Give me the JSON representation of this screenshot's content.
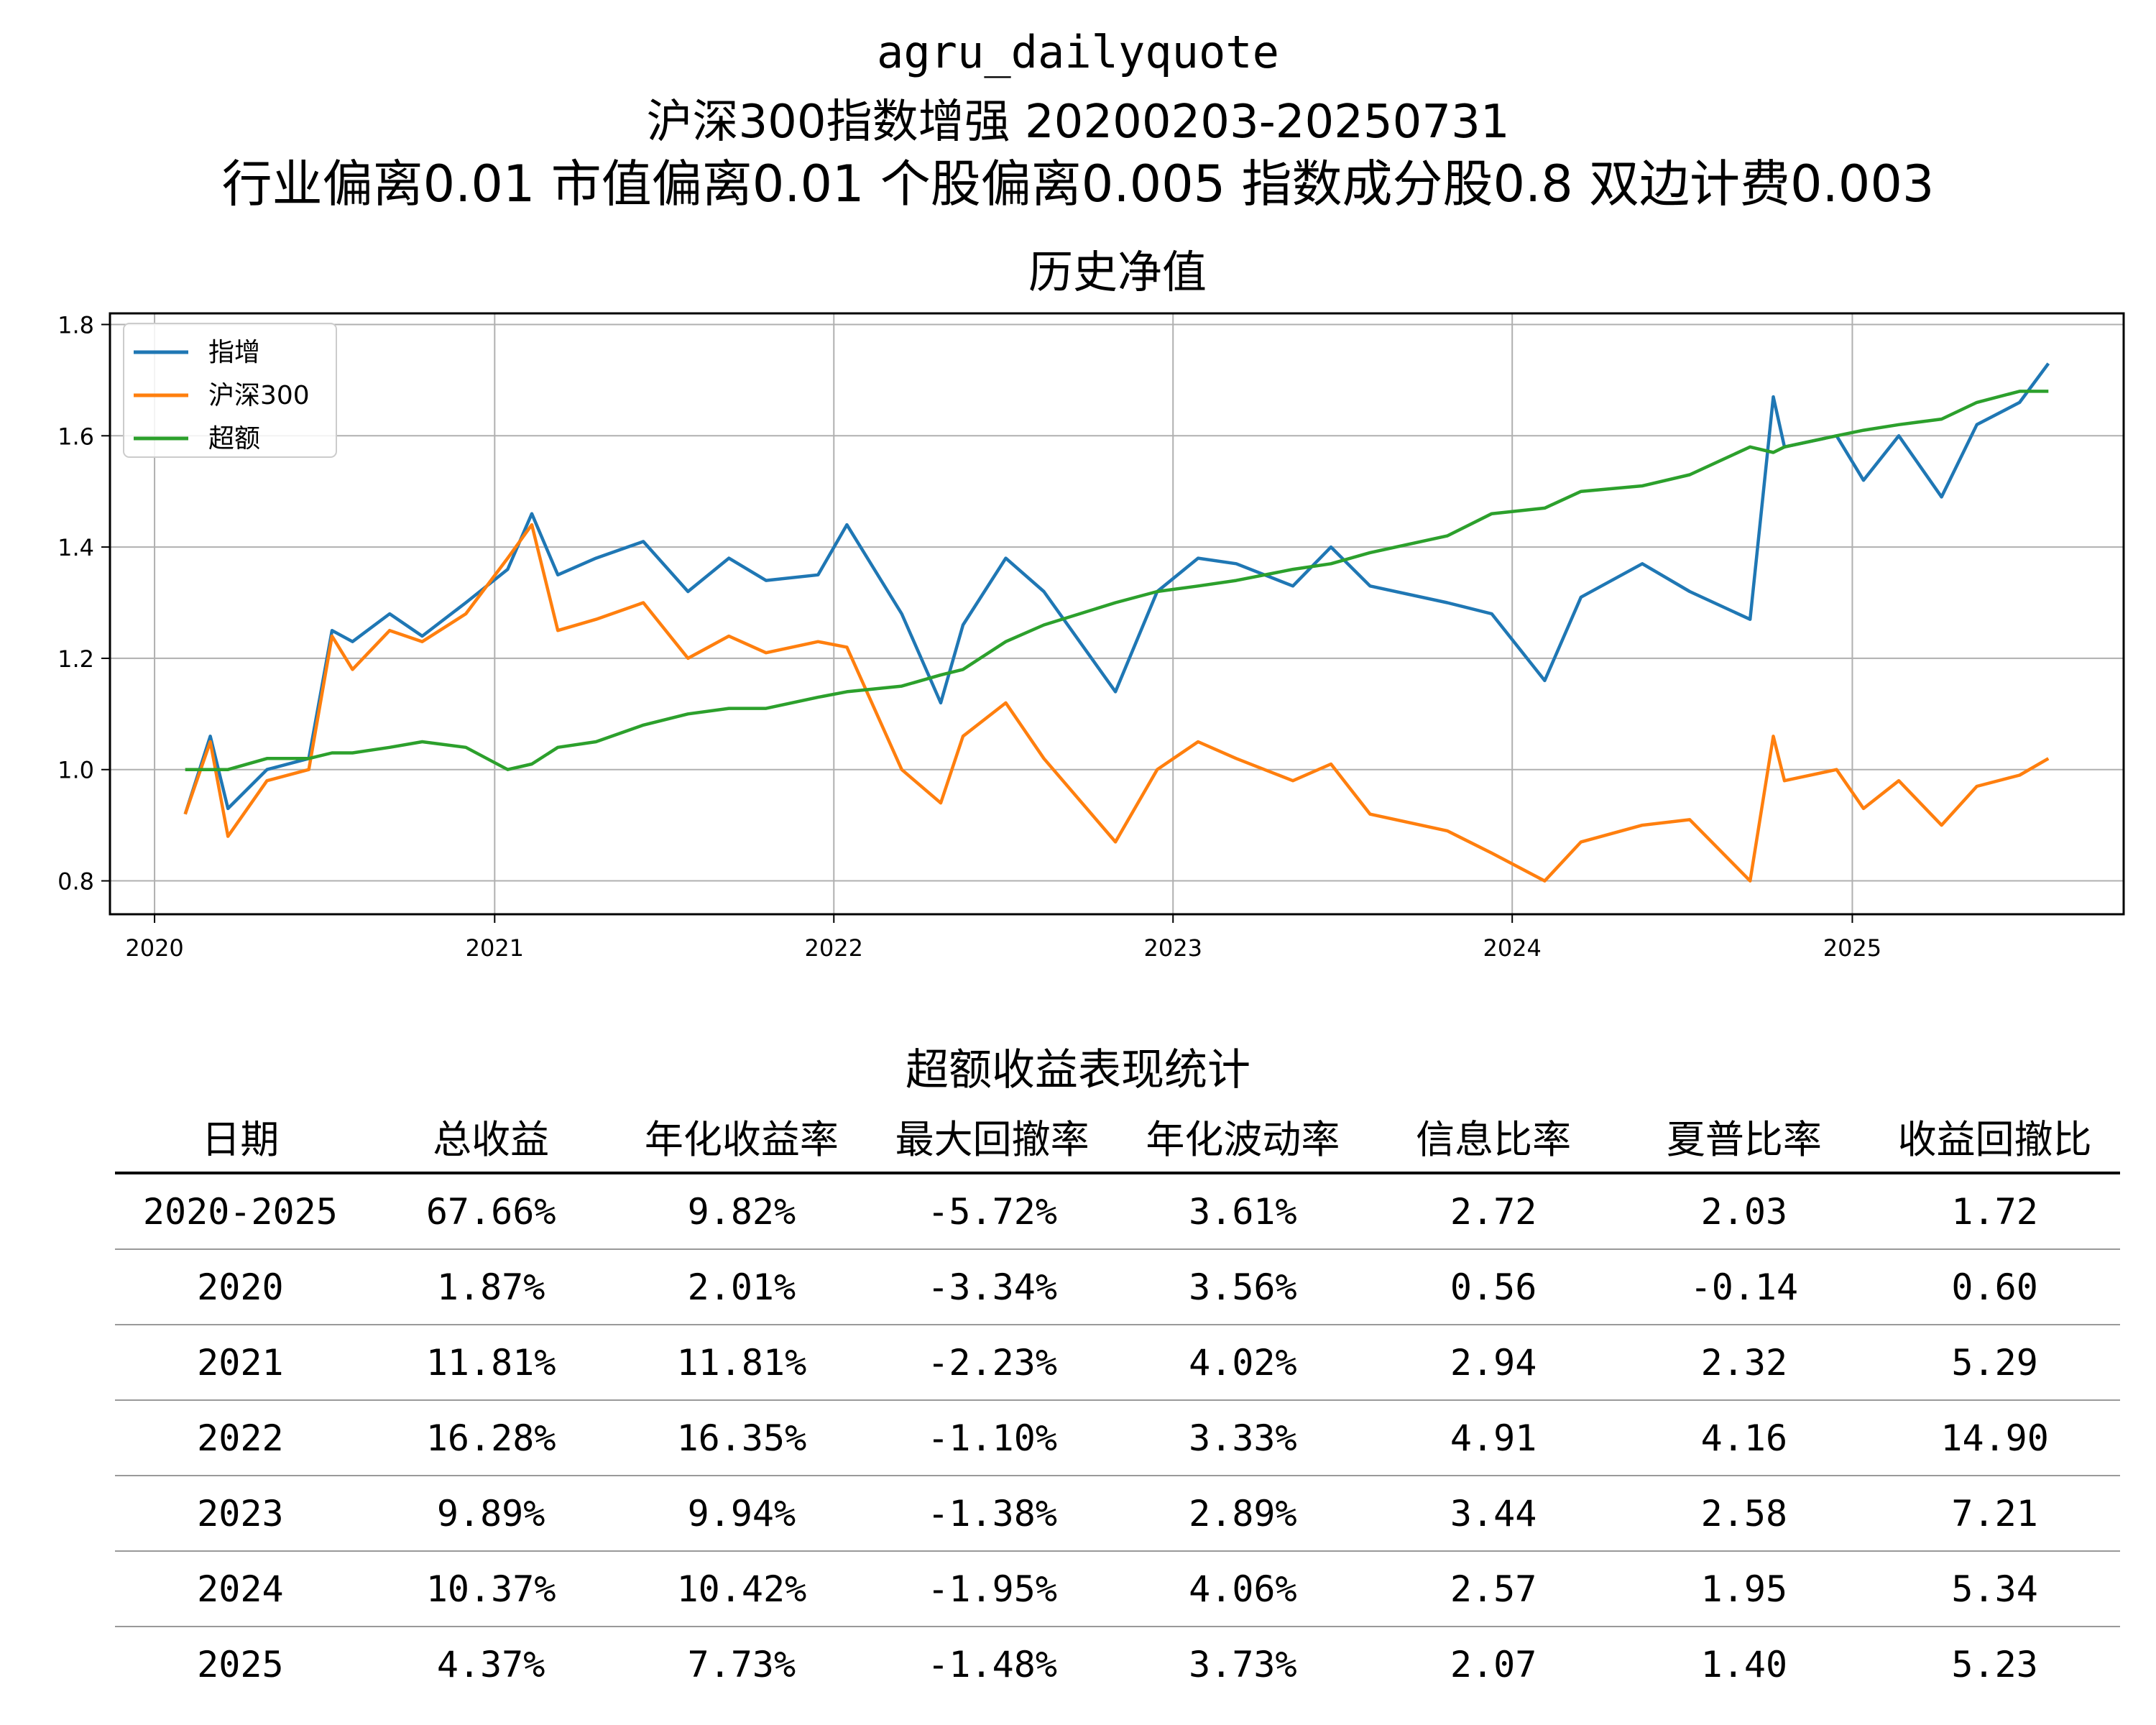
{
  "header": {
    "line1": "agru_dailyquote",
    "line2": "沪深300指数增强  20200203-20250731",
    "line3": "行业偏离0.01  市值偏离0.01  个股偏离0.005  指数成分股0.8  双边计费0.003"
  },
  "chart_data": {
    "type": "line",
    "title": "历史净值",
    "xlabel": "",
    "ylabel": "",
    "xlim": [
      "2019-11-14",
      "2025-10-20"
    ],
    "ylim": [
      0.74,
      1.82
    ],
    "x_ticks": [
      "2020",
      "2021",
      "2022",
      "2023",
      "2024",
      "2025"
    ],
    "y_ticks": [
      "0.8",
      "1.0",
      "1.2",
      "1.4",
      "1.6",
      "1.8"
    ],
    "grid": true,
    "legend_position": "upper-left",
    "x": [
      "2020-02-03",
      "2020-03-01",
      "2020-03-20",
      "2020-05-01",
      "2020-06-15",
      "2020-07-10",
      "2020-08-01",
      "2020-09-10",
      "2020-10-15",
      "2020-12-01",
      "2021-01-15",
      "2021-02-10",
      "2021-03-10",
      "2021-04-20",
      "2021-06-10",
      "2021-07-28",
      "2021-09-10",
      "2021-10-20",
      "2021-12-15",
      "2022-01-15",
      "2022-03-15",
      "2022-04-26",
      "2022-05-20",
      "2022-07-05",
      "2022-08-15",
      "2022-10-31",
      "2022-12-15",
      "2023-01-28",
      "2023-03-10",
      "2023-05-10",
      "2023-06-20",
      "2023-08-01",
      "2023-10-23",
      "2023-12-10",
      "2024-02-05",
      "2024-03-15",
      "2024-05-20",
      "2024-07-10",
      "2024-09-13",
      "2024-10-08",
      "2024-10-20",
      "2024-12-15",
      "2025-01-13",
      "2025-02-20",
      "2025-04-07",
      "2025-05-15",
      "2025-06-30",
      "2025-07-31"
    ],
    "series": [
      {
        "name": "指增",
        "color": "#1f77b4",
        "values": [
          0.92,
          1.06,
          0.93,
          1.0,
          1.02,
          1.25,
          1.23,
          1.28,
          1.24,
          1.3,
          1.36,
          1.46,
          1.35,
          1.38,
          1.41,
          1.32,
          1.38,
          1.34,
          1.35,
          1.44,
          1.28,
          1.12,
          1.26,
          1.38,
          1.32,
          1.14,
          1.32,
          1.38,
          1.37,
          1.33,
          1.4,
          1.33,
          1.3,
          1.28,
          1.16,
          1.31,
          1.37,
          1.32,
          1.27,
          1.67,
          1.58,
          1.6,
          1.52,
          1.6,
          1.49,
          1.62,
          1.66,
          1.73
        ]
      },
      {
        "name": "沪深300",
        "color": "#ff7f0e",
        "values": [
          0.92,
          1.05,
          0.88,
          0.98,
          1.0,
          1.24,
          1.18,
          1.25,
          1.23,
          1.28,
          1.38,
          1.44,
          1.25,
          1.27,
          1.3,
          1.2,
          1.24,
          1.21,
          1.23,
          1.22,
          1.0,
          0.94,
          1.06,
          1.12,
          1.02,
          0.87,
          1.0,
          1.05,
          1.02,
          0.98,
          1.01,
          0.92,
          0.89,
          0.85,
          0.8,
          0.87,
          0.9,
          0.91,
          0.8,
          1.06,
          0.98,
          1.0,
          0.93,
          0.98,
          0.9,
          0.97,
          0.99,
          1.02
        ]
      },
      {
        "name": "超额",
        "color": "#2ca02c",
        "values": [
          1.0,
          1.0,
          1.0,
          1.02,
          1.02,
          1.03,
          1.03,
          1.04,
          1.05,
          1.04,
          1.0,
          1.01,
          1.04,
          1.05,
          1.08,
          1.1,
          1.11,
          1.11,
          1.13,
          1.14,
          1.15,
          1.17,
          1.18,
          1.23,
          1.26,
          1.3,
          1.32,
          1.33,
          1.34,
          1.36,
          1.37,
          1.39,
          1.42,
          1.46,
          1.47,
          1.5,
          1.51,
          1.53,
          1.58,
          1.57,
          1.58,
          1.6,
          1.61,
          1.62,
          1.63,
          1.66,
          1.68,
          1.68
        ]
      }
    ]
  },
  "stats": {
    "title": "超额收益表现统计",
    "columns": [
      "日期",
      "总收益",
      "年化收益率",
      "最大回撤率",
      "年化波动率",
      "信息比率",
      "夏普比率",
      "收益回撤比"
    ],
    "rows": [
      [
        "2020-2025",
        "67.66%",
        "9.82%",
        "-5.72%",
        "3.61%",
        "2.72",
        "2.03",
        "1.72"
      ],
      [
        "2020",
        "1.87%",
        "2.01%",
        "-3.34%",
        "3.56%",
        "0.56",
        "-0.14",
        "0.60"
      ],
      [
        "2021",
        "11.81%",
        "11.81%",
        "-2.23%",
        "4.02%",
        "2.94",
        "2.32",
        "5.29"
      ],
      [
        "2022",
        "16.28%",
        "16.35%",
        "-1.10%",
        "3.33%",
        "4.91",
        "4.16",
        "14.90"
      ],
      [
        "2023",
        "9.89%",
        "9.94%",
        "-1.38%",
        "2.89%",
        "3.44",
        "2.58",
        "7.21"
      ],
      [
        "2024",
        "10.37%",
        "10.42%",
        "-1.95%",
        "4.06%",
        "2.57",
        "1.95",
        "5.34"
      ],
      [
        "2025",
        "4.37%",
        "7.73%",
        "-1.48%",
        "3.73%",
        "2.07",
        "1.40",
        "5.23"
      ]
    ]
  }
}
